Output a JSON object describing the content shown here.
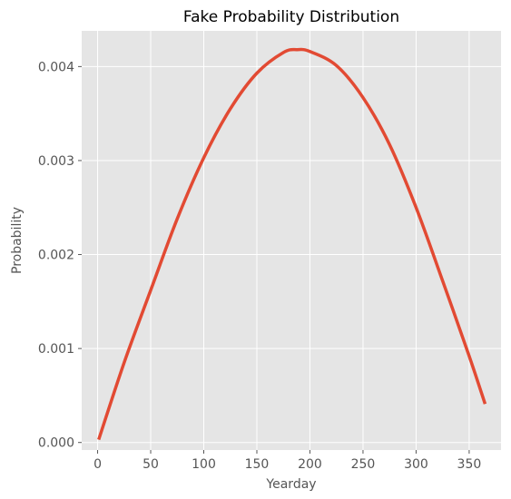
{
  "chart_data": {
    "type": "line",
    "title": "Fake Probability Distribution",
    "xlabel": "Yearday",
    "ylabel": "Probability",
    "xlim": [
      -15,
      380
    ],
    "ylim": [
      -8e-05,
      0.00438
    ],
    "grid": true,
    "legend": "none",
    "x_ticks": [
      0,
      50,
      100,
      150,
      200,
      250,
      300,
      350
    ],
    "x_tick_labels": [
      "0",
      "50",
      "100",
      "150",
      "200",
      "250",
      "300",
      "350"
    ],
    "y_ticks": [
      0.0,
      0.001,
      0.002,
      0.003,
      0.004
    ],
    "y_tick_labels": [
      "0.000",
      "0.001",
      "0.002",
      "0.003",
      "0.004"
    ],
    "series": [
      {
        "color": "#e24a33",
        "x": [
          1,
          25,
          50,
          75,
          100,
          125,
          150,
          175,
          188,
          200,
          225,
          250,
          275,
          300,
          325,
          350,
          365
        ],
        "y": [
          3e-05,
          0.00085,
          0.00162,
          0.00238,
          0.00303,
          0.00355,
          0.00393,
          0.00415,
          0.00418,
          0.00416,
          0.00401,
          0.00367,
          0.00317,
          0.0025,
          0.00172,
          0.00092,
          0.00041
        ]
      }
    ],
    "colors": {
      "plot_background": "#e5e5e5",
      "grid": "#ffffff",
      "line": "#e24a33"
    }
  }
}
